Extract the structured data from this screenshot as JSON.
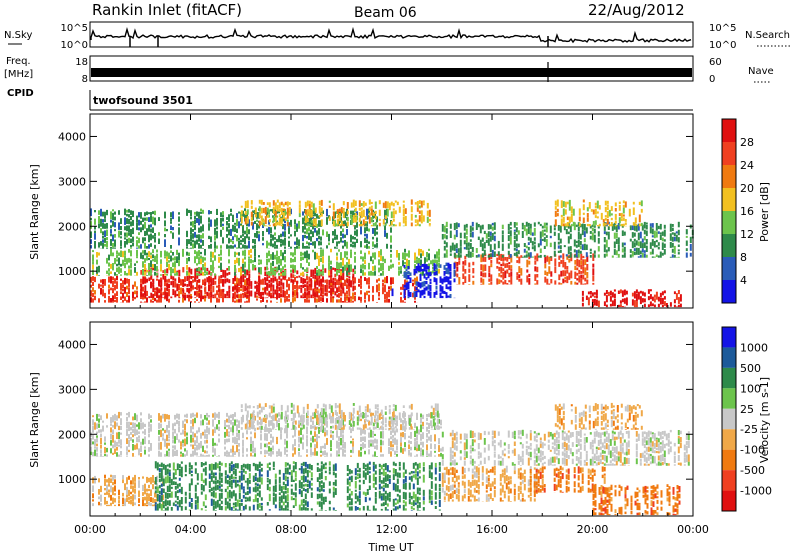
{
  "header": {
    "station": "Rankin Inlet (fitACF)",
    "beam": "Beam 06",
    "date": "22/Aug/2012"
  },
  "sky_panel": {
    "left_label": "N.Sky",
    "left_ticks": [
      "10^5",
      "10^0"
    ],
    "right_ticks": [
      "10^5",
      "10^0"
    ],
    "right_label": "N.Search"
  },
  "freq_panel": {
    "left_label_1": "Freq.",
    "left_label_2": "[MHz]",
    "left_ticks": [
      "18",
      "8"
    ],
    "right_ticks": [
      "60",
      "0"
    ],
    "right_label": "Nave"
  },
  "cpid_panel": {
    "left_label": "CPID",
    "program": "twofsound 3501"
  },
  "colors": {
    "power": [
      "#1414e6",
      "#2a5cb8",
      "#2e8a4a",
      "#6cc44c",
      "#f2c020",
      "#f07a10",
      "#f04020",
      "#e01010"
    ],
    "velocity": [
      "#e01010",
      "#f04020",
      "#f07a10",
      "#f0a848",
      "#c8c8c8",
      "#6cc44c",
      "#2e8a4a",
      "#1c5a9a",
      "#1414e6"
    ]
  },
  "chart_data": [
    {
      "type": "heatmap",
      "name": "power",
      "ylabel": "Slant Range [km]",
      "xlabel": "",
      "x_ticks": [
        "00:00",
        "04:00",
        "08:00",
        "12:00",
        "16:00",
        "20:00",
        "00:00"
      ],
      "y_ticks": [
        1000,
        2000,
        3000,
        4000
      ],
      "xlim_hours": [
        0,
        24
      ],
      "ylim_km": [
        180,
        4500
      ],
      "colorbar_label": "Power [dB]",
      "colorbar_ticks": [
        "4",
        "8",
        "12",
        "16",
        "20",
        "24",
        "28"
      ],
      "regions": [
        {
          "h0": 0.0,
          "h1": 13.0,
          "r0": 300,
          "r1": 900,
          "level": 6
        },
        {
          "h0": 2.0,
          "h1": 10.5,
          "r0": 400,
          "r1": 1100,
          "level": 7
        },
        {
          "h0": 0.0,
          "h1": 14.0,
          "r0": 900,
          "r1": 1500,
          "level": 3
        },
        {
          "h0": 0.0,
          "h1": 12.0,
          "r0": 1500,
          "r1": 2400,
          "level": 2
        },
        {
          "h0": 6.0,
          "h1": 13.5,
          "r0": 2000,
          "r1": 2600,
          "level": 4
        },
        {
          "h0": 14.5,
          "h1": 20.0,
          "r0": 700,
          "r1": 1400,
          "level": 6
        },
        {
          "h0": 14.0,
          "h1": 24.0,
          "r0": 1300,
          "r1": 2100,
          "level": 2
        },
        {
          "h0": 19.5,
          "h1": 23.5,
          "r0": 200,
          "r1": 600,
          "level": 7
        },
        {
          "h0": 18.5,
          "h1": 22.0,
          "r0": 2000,
          "r1": 2600,
          "level": 4
        },
        {
          "h0": 12.0,
          "h1": 14.5,
          "r0": 400,
          "r1": 1200,
          "level": 0
        }
      ]
    },
    {
      "type": "heatmap",
      "name": "velocity",
      "ylabel": "Slant Range [km]",
      "xlabel": "Time UT",
      "x_ticks": [
        "00:00",
        "04:00",
        "08:00",
        "12:00",
        "16:00",
        "20:00",
        "00:00"
      ],
      "y_ticks": [
        1000,
        2000,
        3000,
        4000
      ],
      "xlim_hours": [
        0,
        24
      ],
      "ylim_km": [
        180,
        4500
      ],
      "colorbar_label": "Velocity [m s-1]",
      "colorbar_ticks": [
        "1000",
        "500",
        "100",
        "25",
        "-25",
        "-100",
        "-500",
        "-1000"
      ],
      "regions": [
        {
          "h0": 0.0,
          "h1": 3.0,
          "r0": 400,
          "r1": 1100,
          "level": 3
        },
        {
          "h0": 2.5,
          "h1": 14.0,
          "r0": 300,
          "r1": 1400,
          "level": 6
        },
        {
          "h0": 0.0,
          "h1": 14.0,
          "r0": 1500,
          "r1": 2500,
          "level": 4
        },
        {
          "h0": 6.0,
          "h1": 14.0,
          "r0": 2100,
          "r1": 2700,
          "level": 4
        },
        {
          "h0": 14.0,
          "h1": 18.0,
          "r0": 500,
          "r1": 1300,
          "level": 3
        },
        {
          "h0": 17.5,
          "h1": 20.5,
          "r0": 700,
          "r1": 1300,
          "level": 2
        },
        {
          "h0": 20.0,
          "h1": 23.5,
          "r0": 200,
          "r1": 900,
          "level": 2
        },
        {
          "h0": 14.0,
          "h1": 24.0,
          "r0": 1300,
          "r1": 2100,
          "level": 4
        },
        {
          "h0": 18.5,
          "h1": 22.0,
          "r0": 2100,
          "r1": 2700,
          "level": 3
        }
      ]
    }
  ]
}
